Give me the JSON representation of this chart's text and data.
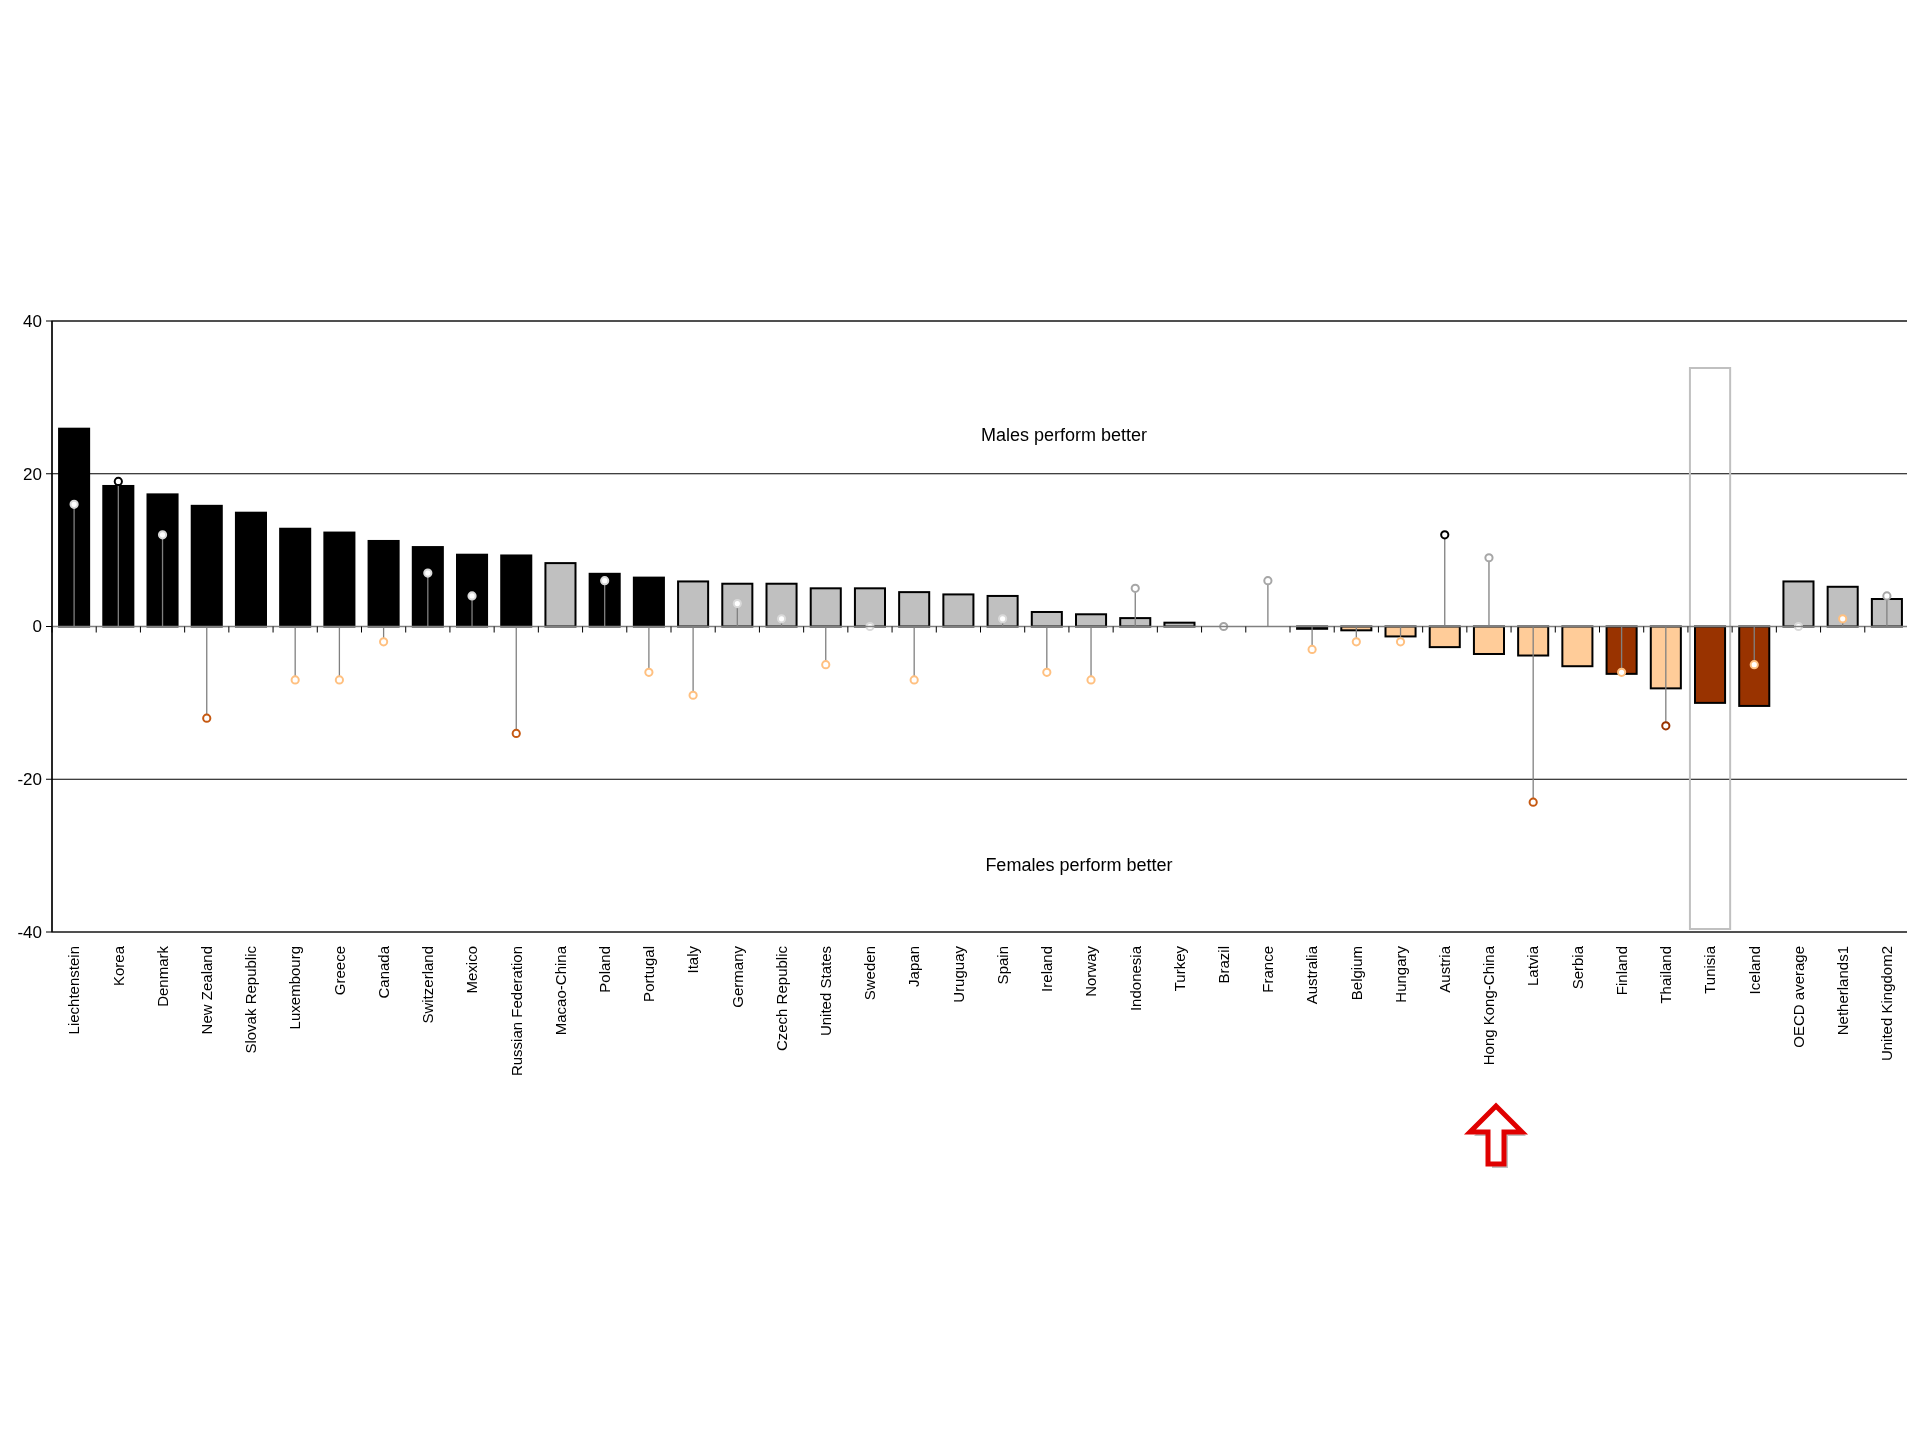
{
  "chart_data": {
    "type": "bar",
    "categories": [
      "Liechtenstein",
      "Korea",
      "Denmark",
      "New Zealand",
      "Slovak Republic",
      "Luxembourg",
      "Greece",
      "Canada",
      "Switzerland",
      "Mexico",
      "Russian Federation",
      "Macao-China",
      "Poland",
      "Portugal",
      "Italy",
      "Germany",
      "Czech Republic",
      "United States",
      "Sweden",
      "Japan",
      "Uruguay",
      "Spain",
      "Ireland",
      "Norway",
      "Indonesia",
      "Turkey",
      "Brazil",
      "France",
      "Australia",
      "Belgium",
      "Hungary",
      "Austria",
      "Hong Kong-China",
      "Latvia",
      "Serbia",
      "Finland",
      "Thailand",
      "Tunisia",
      "Iceland",
      "OECD average",
      "Netherlands1",
      "United Kingdom2"
    ],
    "series": [
      {
        "values": [
          25.9,
          18.4,
          17.3,
          15.8,
          14.9,
          12.8,
          12.3,
          11.2,
          10.4,
          9.4,
          9.3,
          8.3,
          6.9,
          6.4,
          5.9,
          5.6,
          5.6,
          5.0,
          5.0,
          4.5,
          4.2,
          4.0,
          1.9,
          1.6,
          1.1,
          0.5,
          null,
          null,
          -0.3,
          -0.5,
          -1.3,
          -2.7,
          -3.6,
          -3.8,
          -5.2,
          -6.2,
          -8.1,
          -10.0,
          -10.4,
          5.9,
          5.2,
          3.6
        ],
        "colors": [
          "#000000",
          "#000000",
          "#000000",
          "#000000",
          "#000000",
          "#000000",
          "#000000",
          "#000000",
          "#000000",
          "#000000",
          "#000000",
          "#c0c0c0",
          "#000000",
          "#000000",
          "#c0c0c0",
          "#c0c0c0",
          "#c0c0c0",
          "#c0c0c0",
          "#c0c0c0",
          "#c0c0c0",
          "#c0c0c0",
          "#c0c0c0",
          "#c0c0c0",
          "#c0c0c0",
          "#c0c0c0",
          "#c0c0c0",
          null,
          null,
          "#000000",
          "#ffcc99",
          "#ffcc99",
          "#ffcc99",
          "#ffcc99",
          "#ffcc99",
          "#ffcc99",
          "#993300",
          "#ffcc99",
          "#993300",
          "#993300",
          "#c0c0c0",
          "#c0c0c0",
          "#c0c0c0"
        ]
      },
      {
        "type": "lollipop",
        "values": [
          16,
          19,
          12,
          -12,
          null,
          -7,
          -7,
          -2,
          7,
          4,
          -14,
          null,
          6,
          -6,
          -9,
          3,
          1,
          -5,
          0,
          -7,
          null,
          1,
          -6,
          -7,
          5,
          null,
          0,
          6,
          -3,
          -2,
          -2,
          12,
          9,
          -23,
          null,
          -6,
          -13,
          null,
          -5,
          0,
          1,
          4
        ],
        "colors": [
          "#d9d9d9",
          "#000000",
          "#d9d9d9",
          "#c65911",
          null,
          "#ffc080",
          "#ffc080",
          "#ffc080",
          "#d9d9d9",
          "#d9d9d9",
          "#c65911",
          null,
          "#d9d9d9",
          "#ffc080",
          "#ffc080",
          "#d9d9d9",
          "#d9d9d9",
          "#ffc080",
          "#d9d9d9",
          "#ffc080",
          null,
          "#d9d9d9",
          "#ffc080",
          "#ffc080",
          "#a6a6a6",
          null,
          "#a6a6a6",
          "#a6a6a6",
          "#ffc080",
          "#ffc080",
          "#ffc080",
          "#000000",
          "#a6a6a6",
          "#c65911",
          null,
          "#ffc080",
          "#993300",
          null,
          "#ffc080",
          "#d9d9d9",
          "#ffc080",
          "#a6a6a6"
        ]
      }
    ],
    "ylim": [
      -40,
      40
    ],
    "yticks": [
      -40,
      -20,
      0,
      20,
      40
    ],
    "grid": "y",
    "marker": "circle",
    "annotations": [
      "Males perform better",
      "Females perform better"
    ]
  }
}
